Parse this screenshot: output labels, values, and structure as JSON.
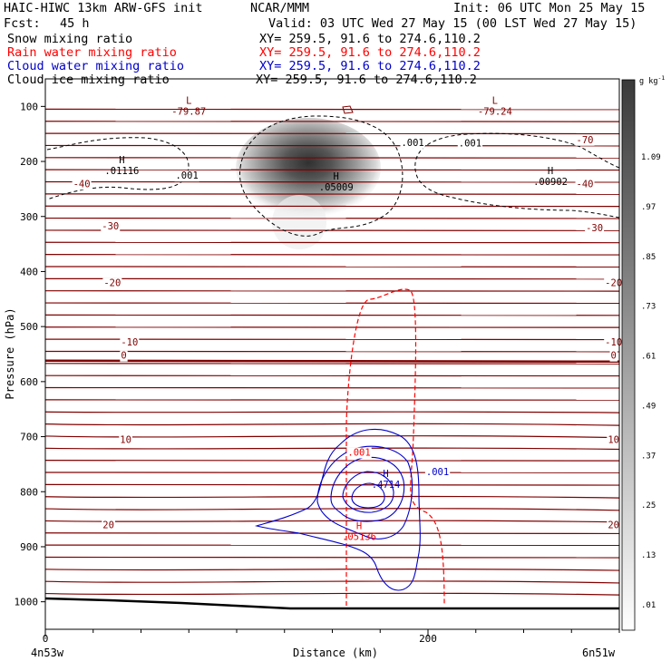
{
  "header": {
    "model_line": "HAIC-HIWC 13km ARW-GFS init",
    "org": "NCAR/MMM",
    "init": "Init: 06 UTC Mon 25 May 15",
    "fcst_label": "Fcst:",
    "fcst_value": "45 h",
    "valid": "Valid: 03 UTC Wed 27 May 15 (00 LST Wed 27 May 15)",
    "fields": [
      {
        "name": "Snow mixing ratio",
        "xy": "XY= 259.5, 91.6 to 274.6,110.2",
        "color": "#000000"
      },
      {
        "name": "Rain water mixing ratio",
        "xy": "XY= 259.5, 91.6 to 274.6,110.2",
        "color": "#ff0000"
      },
      {
        "name": "Cloud water mixing ratio",
        "xy": "XY= 259.5, 91.6 to 274.6,110.2",
        "color": "#0000cc"
      },
      {
        "name": "Cloud ice mixing ratio",
        "xy": "XY= 259.5, 91.6 to 274.6,110.2",
        "color": "#000000"
      }
    ]
  },
  "chart_data": {
    "type": "contour",
    "xlabel": "Distance (km)",
    "ylabel": "Pressure (hPa)",
    "xlim": [
      0,
      300
    ],
    "ylim": [
      1050,
      50
    ],
    "x_ticks": [
      0,
      200
    ],
    "y_ticks": [
      100,
      200,
      300,
      400,
      500,
      600,
      700,
      800,
      900,
      1000
    ],
    "x_endpoints": [
      "4n53w",
      "6n51w"
    ],
    "colorbar": {
      "unit": "g kg",
      "unit_sup": "-1",
      "labels": [
        "1.09",
        ".97",
        ".85",
        ".73",
        ".61",
        ".49",
        ".37",
        ".25",
        ".13",
        ".01"
      ]
    },
    "temperature_contours": {
      "color": "#800000",
      "labels": [
        {
          "text": "-40",
          "x": 19,
          "p": 240
        },
        {
          "text": "-40",
          "x": 282,
          "p": 240
        },
        {
          "text": "-30",
          "x": 34,
          "p": 317
        },
        {
          "text": "-30",
          "x": 287,
          "p": 320
        },
        {
          "text": "-20",
          "x": 35,
          "p": 420
        },
        {
          "text": "-20",
          "x": 297,
          "p": 420
        },
        {
          "text": "-10",
          "x": 44,
          "p": 528
        },
        {
          "text": "-10",
          "x": 297,
          "p": 528
        },
        {
          "text": "-70",
          "x": 282,
          "p": 160
        },
        {
          "text": "0",
          "x": 41,
          "p": 552
        },
        {
          "text": "0",
          "x": 297,
          "p": 552
        },
        {
          "text": "10",
          "x": 42,
          "p": 705
        },
        {
          "text": "10",
          "x": 297,
          "p": 705
        },
        {
          "text": "20",
          "x": 33,
          "p": 860
        },
        {
          "text": "20",
          "x": 297,
          "p": 860
        }
      ],
      "extrema": [
        {
          "kind": "L",
          "value": "-79.87",
          "x": 75,
          "p": 105
        },
        {
          "kind": "L",
          "value": "-79.24",
          "x": 235,
          "p": 105
        }
      ]
    },
    "snow": {
      "maximum": {
        "kind": "H",
        "value": ".05009",
        "x": 152,
        "p": 243
      }
    },
    "cloud_ice": {
      "color": "#000000",
      "labels": [
        {
          "text": ".001",
          "x": 74,
          "p": 225
        },
        {
          "text": ".001",
          "x": 192,
          "p": 165
        },
        {
          "text": ".001",
          "x": 222,
          "p": 166
        }
      ],
      "extrema": [
        {
          "kind": "H",
          "value": ".01116",
          "x": 40,
          "p": 213
        },
        {
          "kind": "H",
          "value": ".00902",
          "x": 264,
          "p": 233
        }
      ]
    },
    "cloud_water": {
      "color": "#0000cc",
      "labels": [
        {
          "text": ".001",
          "x": 205,
          "p": 763
        }
      ],
      "maximum": {
        "kind": "H",
        "value": ".4714",
        "x": 178,
        "p": 783
      }
    },
    "rain": {
      "color": "#ff0000",
      "labels": [
        {
          "text": ".001",
          "x": 164,
          "p": 728
        }
      ],
      "maximum": {
        "kind": "H",
        "value": ".05136",
        "x": 164,
        "p": 878
      }
    }
  }
}
